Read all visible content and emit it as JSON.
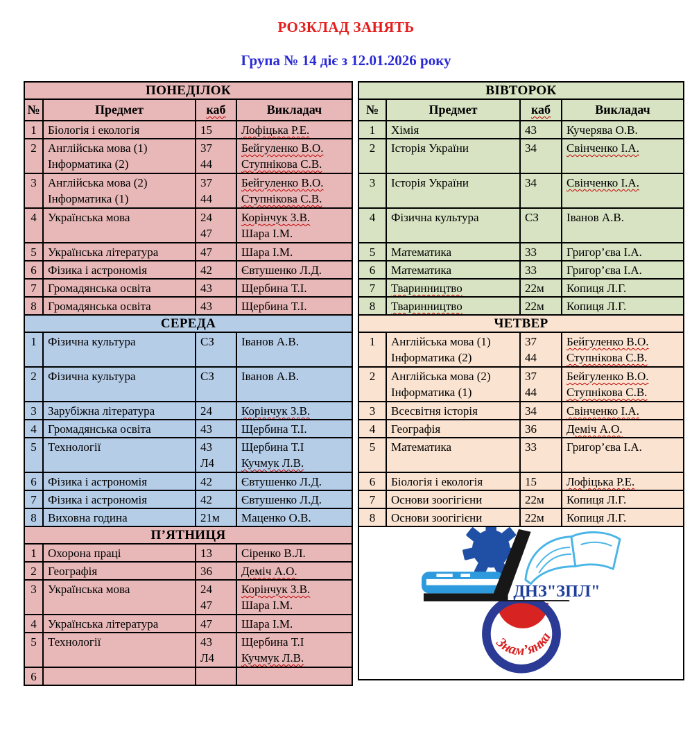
{
  "page": {
    "title": "РОЗКЛАД ЗАНЯТЬ",
    "subtitle": "Група № 14 діє з 12.01.2026 року"
  },
  "colors": {
    "title": "#e51d1d",
    "subtitle": "#2a2ad4",
    "wavy": "#c00000",
    "days": {
      "monday": "#e8b8b8",
      "tuesday": "#d7e3c2",
      "wednesday": "#b6cde8",
      "thursday": "#fae3d1",
      "friday": "#e8b8b8"
    },
    "logo": {
      "gear": "#2050a5",
      "bluebook": "#2d9ade",
      "bookline": "#49b5e6",
      "ring": "#2a3a95",
      "red": "#d82323",
      "textmain": "#1d3e9b"
    }
  },
  "table": {
    "column_headers": {
      "num": "№",
      "subject": "Предмет",
      "room": "каб",
      "room_wavy": true,
      "teacher": "Викладач"
    },
    "days": [
      {
        "key": "monday",
        "name": "ПОНЕДІЛОК",
        "has_col_header": true,
        "rows": [
          {
            "n": "1",
            "s": [
              {
                "t": "Біологія і екологія",
                "w": false
              }
            ],
            "r": [
              "15"
            ],
            "t": [
              {
                "t": "Лофіцька Р.Е.",
                "w": true
              }
            ]
          },
          {
            "n": "2",
            "s": [
              {
                "t": "Англійська мова (1)",
                "w": false
              },
              {
                "t": "Інформатика (2)",
                "w": false
              }
            ],
            "r": [
              "37",
              "44"
            ],
            "t": [
              {
                "t": "Бейгуленко В.О.",
                "w": true
              },
              {
                "t": "Ступнікова С.В.",
                "w": true
              }
            ]
          },
          {
            "n": "3",
            "s": [
              {
                "t": "Англійська мова (2)",
                "w": false
              },
              {
                "t": "Інформатика (1)",
                "w": false
              }
            ],
            "r": [
              "37",
              "44"
            ],
            "t": [
              {
                "t": "Бейгуленко В.О.",
                "w": true
              },
              {
                "t": "Ступнікова С.В.",
                "w": true
              }
            ]
          },
          {
            "n": "4",
            "s": [
              {
                "t": "Українська мова",
                "w": false
              }
            ],
            "r": [
              "24",
              "47"
            ],
            "t": [
              {
                "t": "Корінчук З.В.",
                "w": true
              },
              {
                "t": "Шара І.М.",
                "w": false
              }
            ]
          },
          {
            "n": "5",
            "s": [
              {
                "t": "Українська література",
                "w": false
              }
            ],
            "r": [
              "47"
            ],
            "t": [
              {
                "t": "Шара І.М.",
                "w": false
              }
            ]
          },
          {
            "n": "6",
            "s": [
              {
                "t": "Фізика і астрономія",
                "w": false
              }
            ],
            "r": [
              "42"
            ],
            "t": [
              {
                "t": "Євтушенко Л.Д.",
                "w": false
              }
            ]
          },
          {
            "n": "7",
            "s": [
              {
                "t": "Громадянська освіта",
                "w": false
              }
            ],
            "r": [
              "43"
            ],
            "t": [
              {
                "t": "Щербина Т.І.",
                "w": false
              }
            ]
          },
          {
            "n": "8",
            "s": [
              {
                "t": "Громадянська освіта",
                "w": false
              }
            ],
            "r": [
              "43"
            ],
            "t": [
              {
                "t": "Щербина Т.І.",
                "w": false
              }
            ]
          }
        ]
      },
      {
        "key": "tuesday",
        "name": "ВІВТОРОК",
        "has_col_header": true,
        "rows": [
          {
            "n": "1",
            "s": [
              {
                "t": "Хімія",
                "w": false
              }
            ],
            "r": [
              "43"
            ],
            "t": [
              {
                "t": "Кучерява О.В.",
                "w": false
              }
            ]
          },
          {
            "n": "2",
            "s": [
              {
                "t": "Історія України",
                "w": false
              }
            ],
            "r": [
              "34"
            ],
            "t": [
              {
                "t": "Свінченко І.А.",
                "w": true
              }
            ]
          },
          {
            "n": "3",
            "s": [
              {
                "t": "Історія України",
                "w": false
              }
            ],
            "r": [
              "34"
            ],
            "t": [
              {
                "t": "Свінченко І.А.",
                "w": true
              }
            ]
          },
          {
            "n": "4",
            "s": [
              {
                "t": "Фізична культура",
                "w": false
              }
            ],
            "r": [
              "СЗ"
            ],
            "t": [
              {
                "t": "Іванов А.В.",
                "w": false
              }
            ]
          },
          {
            "n": "5",
            "s": [
              {
                "t": "Математика",
                "w": false
              }
            ],
            "r": [
              "33"
            ],
            "t": [
              {
                "t": "Григор’єва І.А.",
                "w": false
              }
            ]
          },
          {
            "n": "6",
            "s": [
              {
                "t": "Математика",
                "w": false
              }
            ],
            "r": [
              "33"
            ],
            "t": [
              {
                "t": "Григор’єва І.А.",
                "w": false
              }
            ]
          },
          {
            "n": "7",
            "s": [
              {
                "t": "Тваринництво",
                "w": true
              }
            ],
            "r": [
              "22м"
            ],
            "t": [
              {
                "t": "Копиця Л.Г.",
                "w": false
              }
            ]
          },
          {
            "n": "8",
            "s": [
              {
                "t": "Тваринництво",
                "w": true
              }
            ],
            "r": [
              "22м"
            ],
            "t": [
              {
                "t": "Копиця Л.Г.",
                "w": false
              }
            ]
          }
        ]
      },
      {
        "key": "wednesday",
        "name": "СЕРЕДА",
        "has_col_header": false,
        "rows": [
          {
            "n": "1",
            "s": [
              {
                "t": "Фізична культура",
                "w": false
              }
            ],
            "r": [
              "СЗ"
            ],
            "t": [
              {
                "t": "Іванов А.В.",
                "w": false
              }
            ]
          },
          {
            "n": "2",
            "s": [
              {
                "t": "Фізична культура",
                "w": false
              }
            ],
            "r": [
              "СЗ"
            ],
            "t": [
              {
                "t": "Іванов А.В.",
                "w": false
              }
            ]
          },
          {
            "n": "3",
            "s": [
              {
                "t": "Зарубіжна література",
                "w": false
              }
            ],
            "r": [
              "24"
            ],
            "t": [
              {
                "t": "Корінчук З.В.",
                "w": true
              }
            ]
          },
          {
            "n": "4",
            "s": [
              {
                "t": "Громадянська освіта",
                "w": false
              }
            ],
            "r": [
              "43"
            ],
            "t": [
              {
                "t": "Щербина Т.І.",
                "w": false
              }
            ]
          },
          {
            "n": "5",
            "s": [
              {
                "t": "Технології",
                "w": false
              }
            ],
            "r": [
              "43",
              "Л4"
            ],
            "t": [
              {
                "t": "Щербина Т.І",
                "w": false
              },
              {
                "t": "Кучмук Л.В.",
                "w": true
              }
            ]
          },
          {
            "n": "6",
            "s": [
              {
                "t": "Фізика і астрономія",
                "w": false
              }
            ],
            "r": [
              "42"
            ],
            "t": [
              {
                "t": "Євтушенко Л.Д.",
                "w": false
              }
            ]
          },
          {
            "n": "7",
            "s": [
              {
                "t": "Фізика і астрономія",
                "w": false
              }
            ],
            "r": [
              "42"
            ],
            "t": [
              {
                "t": "Євтушенко Л.Д.",
                "w": false
              }
            ]
          },
          {
            "n": "8",
            "s": [
              {
                "t": "Виховна година",
                "w": false
              }
            ],
            "r": [
              "21м"
            ],
            "t": [
              {
                "t": "Маценко О.В.",
                "w": false
              }
            ]
          }
        ]
      },
      {
        "key": "thursday",
        "name": "ЧЕТВЕР",
        "has_col_header": false,
        "rows": [
          {
            "n": "1",
            "s": [
              {
                "t": "Англійська мова (1)",
                "w": false
              },
              {
                "t": "Інформатика (2)",
                "w": false
              }
            ],
            "r": [
              "37",
              "44"
            ],
            "t": [
              {
                "t": "Бейгуленко В.О.",
                "w": true
              },
              {
                "t": "Ступнікова С.В.",
                "w": true
              }
            ]
          },
          {
            "n": "2",
            "s": [
              {
                "t": "Англійська мова (2)",
                "w": false
              },
              {
                "t": "Інформатика (1)",
                "w": false
              }
            ],
            "r": [
              "37",
              "44"
            ],
            "t": [
              {
                "t": "Бейгуленко В.О.",
                "w": true
              },
              {
                "t": "Ступнікова С.В.",
                "w": true
              }
            ]
          },
          {
            "n": "3",
            "s": [
              {
                "t": "Всесвітня історія",
                "w": false
              }
            ],
            "r": [
              "34"
            ],
            "t": [
              {
                "t": "Свінченко І.А.",
                "w": true
              }
            ]
          },
          {
            "n": "4",
            "s": [
              {
                "t": "Географія",
                "w": false
              }
            ],
            "r": [
              "36"
            ],
            "t": [
              {
                "t": "Деміч А.О.",
                "w": true
              }
            ]
          },
          {
            "n": "5",
            "s": [
              {
                "t": "Математика",
                "w": false
              }
            ],
            "r": [
              "33"
            ],
            "t": [
              {
                "t": "Григор’єва І.А.",
                "w": false
              }
            ]
          },
          {
            "n": "6",
            "s": [
              {
                "t": "Біологія і екологія",
                "w": false
              }
            ],
            "r": [
              "15"
            ],
            "t": [
              {
                "t": "Лофіцька Р.Е.",
                "w": true
              }
            ]
          },
          {
            "n": "7",
            "s": [
              {
                "t": "Основи зоогігієни",
                "w": false
              }
            ],
            "r": [
              "22м"
            ],
            "t": [
              {
                "t": "Копиця Л.Г.",
                "w": false
              }
            ]
          },
          {
            "n": "8",
            "s": [
              {
                "t": "Основи зоогігієни",
                "w": false
              }
            ],
            "r": [
              "22м"
            ],
            "t": [
              {
                "t": "Копиця Л.Г.",
                "w": false
              }
            ]
          }
        ]
      },
      {
        "key": "friday",
        "name": "П’ЯТНИЦЯ",
        "has_col_header": false,
        "rows": [
          {
            "n": "1",
            "s": [
              {
                "t": "Охорона праці",
                "w": false
              }
            ],
            "r": [
              "13"
            ],
            "t": [
              {
                "t": "Сіренко В.Л.",
                "w": false
              }
            ]
          },
          {
            "n": "2",
            "s": [
              {
                "t": "Географія",
                "w": false
              }
            ],
            "r": [
              "36"
            ],
            "t": [
              {
                "t": "Деміч А.О.",
                "w": true
              }
            ]
          },
          {
            "n": "3",
            "s": [
              {
                "t": "Українська мова",
                "w": false
              }
            ],
            "r": [
              "24",
              "47"
            ],
            "t": [
              {
                "t": "Корінчук З.В.",
                "w": true
              },
              {
                "t": "Шара І.М.",
                "w": false
              }
            ]
          },
          {
            "n": "4",
            "s": [
              {
                "t": "Українська література",
                "w": false
              }
            ],
            "r": [
              "47"
            ],
            "t": [
              {
                "t": "Шара І.М.",
                "w": false
              }
            ]
          },
          {
            "n": "5",
            "s": [
              {
                "t": "Технології",
                "w": false
              }
            ],
            "r": [
              "43",
              "Л4"
            ],
            "t": [
              {
                "t": "Щербина Т.І",
                "w": false
              },
              {
                "t": "Кучмук Л.В.",
                "w": true
              }
            ]
          },
          {
            "n": "6",
            "s": [],
            "r": [],
            "t": []
          }
        ]
      }
    ]
  },
  "logo": {
    "text_main": "ДНЗ\"ЗПЛ\"",
    "text_arc": "Знам’янка"
  }
}
